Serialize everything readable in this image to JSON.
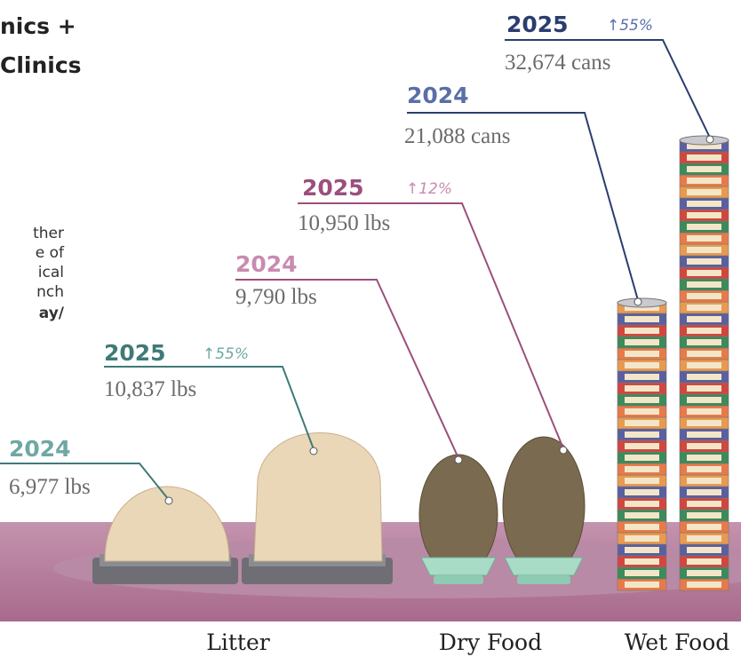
{
  "header": {
    "title_lines": [
      "nics +",
      "Clinics"
    ]
  },
  "body_fragments": [
    "ther",
    "e of",
    "ical",
    "nch",
    "ay/"
  ],
  "groups": [
    {
      "label": "Litter",
      "years": [
        {
          "year": "2024",
          "amount": "6,977 lbs"
        },
        {
          "year": "2025",
          "amount": "10,837 lbs",
          "change": "↑55%"
        }
      ]
    },
    {
      "label": "Dry Food",
      "years": [
        {
          "year": "2024",
          "amount": "9,790 lbs"
        },
        {
          "year": "2025",
          "amount": "10,950 lbs",
          "change": "↑12%"
        }
      ]
    },
    {
      "label": "Wet Food",
      "years": [
        {
          "year": "2024",
          "amount": "21,088 cans"
        },
        {
          "year": "2025",
          "amount": "32,674 cans",
          "change": "↑55%"
        }
      ]
    }
  ]
}
